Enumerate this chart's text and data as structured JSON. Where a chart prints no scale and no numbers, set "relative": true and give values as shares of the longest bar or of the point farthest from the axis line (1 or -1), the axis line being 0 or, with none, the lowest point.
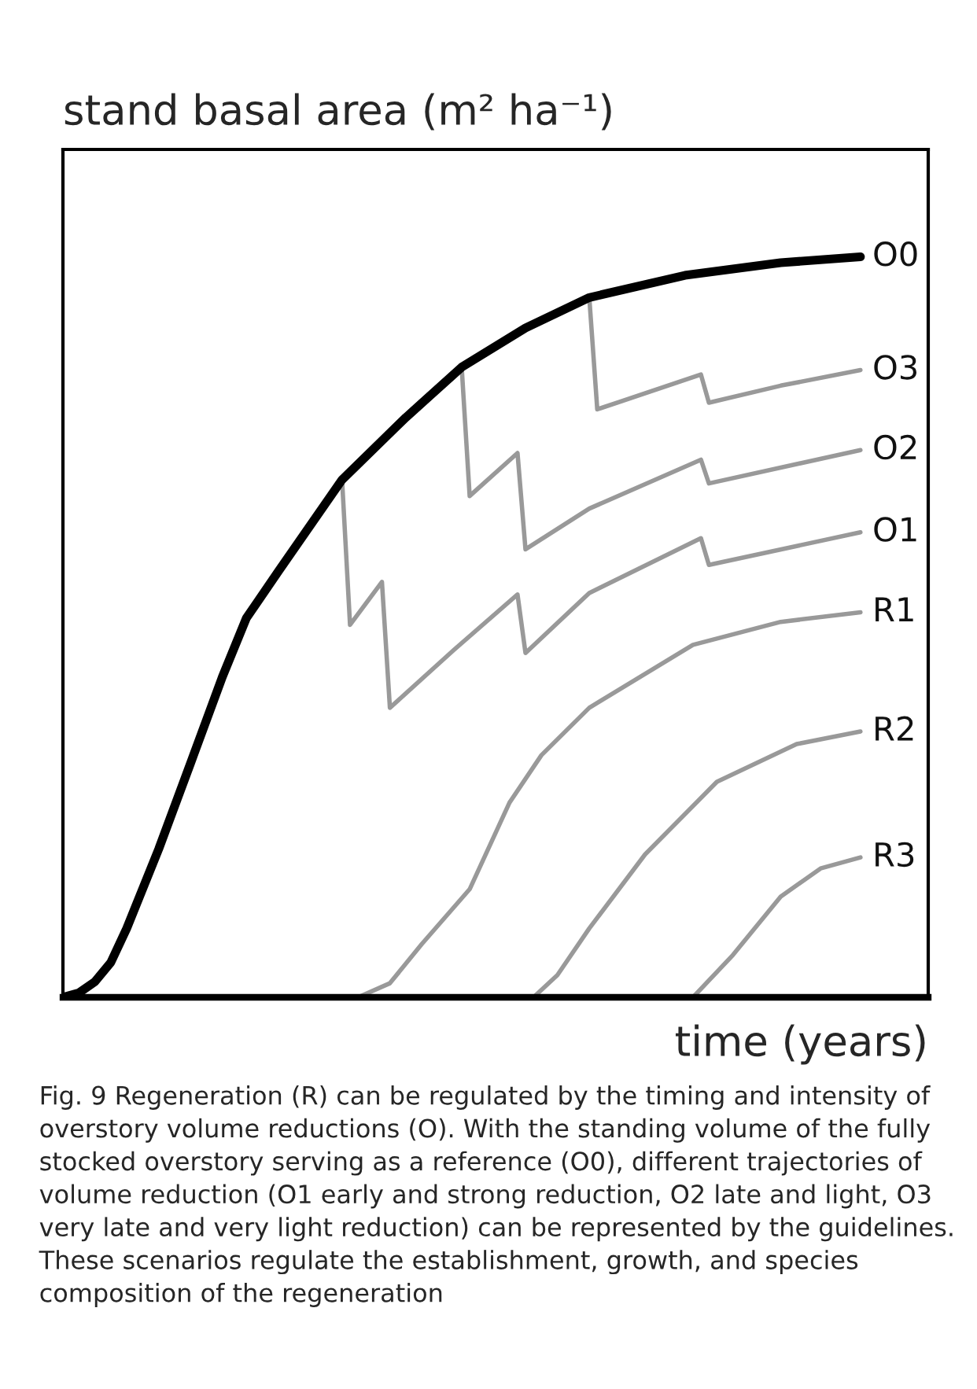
{
  "chart_data": {
    "type": "line",
    "title": "stand basal area (m² ha⁻¹)",
    "xlabel": "time (years)",
    "relative": true,
    "line_style": "solid",
    "annotations": [
      "Fig. 9 Regeneration (R) can be regulated by the timing and intensity of overstory volume reductions (O). With the standing volume of the fully stocked overstory serving as a reference (O0), different trajectories of volume reduction (O1 early and strong reduction, O2 late and light, O3 very late and very light reduction) can be represented by the guidelines. These scenarios regulate the establishment, growth, and species composition of the regeneration"
    ],
    "categories": [
      null,
      null,
      null,
      null,
      null,
      null,
      null,
      null,
      null,
      null,
      null,
      null,
      null,
      null,
      null,
      null,
      null,
      null,
      null,
      null,
      null,
      null,
      null,
      null,
      null,
      null,
      null,
      null,
      null,
      null,
      null,
      null,
      null,
      null,
      null,
      null,
      null,
      null,
      null,
      null,
      null,
      null,
      null,
      null,
      null,
      null,
      null,
      null,
      null,
      null,
      null,
      null,
      null,
      null,
      null,
      null,
      null,
      null,
      null,
      null,
      null,
      null,
      null,
      null,
      null,
      null,
      null,
      null,
      null,
      null,
      null,
      null,
      null,
      null,
      null,
      null,
      null,
      null,
      null,
      null,
      null,
      null,
      null,
      null,
      null,
      null,
      null,
      null,
      null,
      null,
      null,
      null,
      null,
      null,
      null,
      null,
      null,
      null,
      null,
      null,
      null
    ],
    "series": [
      {
        "name": "O0",
        "color": "#000000",
        "values": [
          0,
          null,
          0.006,
          null,
          0.021,
          null,
          0.047,
          null,
          0.093,
          null,
          null,
          null,
          0.2,
          null,
          null,
          null,
          0.316,
          null,
          null,
          null,
          0.433,
          null,
          null,
          0.512,
          null,
          null,
          null,
          0.575,
          null,
          null,
          null,
          null,
          null,
          null,
          null,
          0.699,
          null,
          null,
          null,
          null,
          null,
          null,
          null,
          0.783,
          null,
          null,
          null,
          null,
          null,
          null,
          0.851,
          null,
          null,
          null,
          null,
          null,
          null,
          null,
          0.904,
          null,
          null,
          null,
          null,
          null,
          null,
          null,
          0.945,
          null,
          null,
          null,
          null,
          null,
          null,
          null,
          null,
          null,
          null,
          null,
          0.975,
          null,
          null,
          null,
          null,
          null,
          null,
          null,
          null,
          null,
          null,
          null,
          0.992,
          null,
          null,
          null,
          null,
          null,
          null,
          null,
          null,
          null,
          1
        ]
      },
      {
        "name": "O3",
        "color": "#999999",
        "values": [
          null,
          null,
          null,
          null,
          null,
          null,
          null,
          null,
          null,
          null,
          null,
          null,
          null,
          null,
          null,
          null,
          null,
          null,
          null,
          null,
          null,
          null,
          null,
          null,
          null,
          null,
          null,
          null,
          null,
          null,
          null,
          null,
          null,
          null,
          null,
          null,
          null,
          null,
          null,
          null,
          null,
          null,
          null,
          null,
          null,
          null,
          null,
          null,
          null,
          null,
          null,
          null,
          null,
          null,
          null,
          null,
          null,
          null,
          null,
          null,
          null,
          null,
          null,
          null,
          null,
          null,
          0.945,
          0.794,
          null,
          null,
          null,
          null,
          null,
          null,
          null,
          null,
          null,
          null,
          null,
          null,
          0.841,
          0.803,
          null,
          null,
          null,
          null,
          null,
          null,
          null,
          null,
          0.826,
          null,
          null,
          null,
          null,
          null,
          null,
          null,
          null,
          null,
          0.847
        ]
      },
      {
        "name": "O2",
        "color": "#999999",
        "values": [
          null,
          null,
          null,
          null,
          null,
          null,
          null,
          null,
          null,
          null,
          null,
          null,
          null,
          null,
          null,
          null,
          null,
          null,
          null,
          null,
          null,
          null,
          null,
          null,
          null,
          null,
          null,
          null,
          null,
          null,
          null,
          null,
          null,
          null,
          null,
          null,
          null,
          null,
          null,
          null,
          null,
          null,
          null,
          null,
          null,
          null,
          null,
          null,
          null,
          null,
          0.851,
          0.677,
          null,
          null,
          null,
          null,
          null,
          0.735,
          0.605,
          null,
          null,
          null,
          null,
          null,
          null,
          null,
          0.66,
          null,
          null,
          null,
          null,
          null,
          null,
          null,
          null,
          null,
          null,
          null,
          null,
          null,
          0.726,
          0.694,
          null,
          null,
          null,
          null,
          null,
          null,
          null,
          null,
          null,
          null,
          null,
          null,
          null,
          null,
          null,
          null,
          null,
          null,
          0.739
        ]
      },
      {
        "name": "O1",
        "color": "#999999",
        "values": [
          null,
          null,
          null,
          null,
          null,
          null,
          null,
          null,
          null,
          null,
          null,
          null,
          null,
          null,
          null,
          null,
          null,
          null,
          null,
          null,
          null,
          null,
          null,
          null,
          null,
          null,
          null,
          null,
          null,
          null,
          null,
          null,
          null,
          null,
          null,
          0.699,
          0.503,
          null,
          null,
          null,
          0.561,
          0.391,
          null,
          null,
          null,
          null,
          null,
          null,
          null,
          0.469,
          null,
          null,
          null,
          null,
          null,
          null,
          null,
          0.544,
          0.465,
          null,
          null,
          null,
          null,
          null,
          null,
          null,
          0.546,
          null,
          null,
          null,
          null,
          null,
          null,
          null,
          null,
          null,
          null,
          null,
          null,
          null,
          0.62,
          0.584,
          null,
          null,
          null,
          null,
          null,
          null,
          null,
          null,
          null,
          null,
          null,
          null,
          null,
          null,
          null,
          null,
          null,
          null,
          0.628
        ]
      },
      {
        "name": "R1",
        "color": "#999999",
        "values": [
          null,
          null,
          null,
          null,
          null,
          null,
          null,
          null,
          null,
          null,
          null,
          null,
          null,
          null,
          null,
          null,
          null,
          null,
          null,
          null,
          null,
          null,
          null,
          null,
          null,
          null,
          null,
          null,
          null,
          null,
          null,
          null,
          null,
          null,
          null,
          null,
          null,
          0,
          null,
          null,
          null,
          0.019,
          null,
          null,
          null,
          0.072,
          null,
          null,
          null,
          null,
          null,
          0.146,
          null,
          null,
          null,
          null,
          0.263,
          null,
          null,
          null,
          0.327,
          null,
          null,
          null,
          null,
          null,
          0.391,
          null,
          null,
          null,
          null,
          null,
          null,
          null,
          null,
          null,
          null,
          null,
          null,
          0.476,
          null,
          null,
          null,
          null,
          null,
          null,
          null,
          null,
          null,
          null,
          0.507,
          null,
          null,
          null,
          null,
          null,
          null,
          null,
          null,
          null,
          0.52
        ]
      },
      {
        "name": "R2",
        "color": "#999999",
        "values": [
          null,
          null,
          null,
          null,
          null,
          null,
          null,
          null,
          null,
          null,
          null,
          null,
          null,
          null,
          null,
          null,
          null,
          null,
          null,
          null,
          null,
          null,
          null,
          null,
          null,
          null,
          null,
          null,
          null,
          null,
          null,
          null,
          null,
          null,
          null,
          null,
          null,
          null,
          null,
          null,
          null,
          null,
          null,
          null,
          null,
          null,
          null,
          null,
          null,
          null,
          null,
          null,
          null,
          null,
          null,
          null,
          null,
          null,
          null,
          0,
          null,
          null,
          0.03,
          null,
          null,
          null,
          0.093,
          null,
          null,
          null,
          null,
          null,
          null,
          0.193,
          null,
          null,
          null,
          null,
          null,
          null,
          null,
          null,
          0.291,
          null,
          null,
          null,
          null,
          null,
          null,
          null,
          null,
          null,
          0.342,
          null,
          null,
          null,
          null,
          null,
          null,
          null,
          0.359
        ]
      },
      {
        "name": "R3",
        "color": "#999999",
        "values": [
          null,
          null,
          null,
          null,
          null,
          null,
          null,
          null,
          null,
          null,
          null,
          null,
          null,
          null,
          null,
          null,
          null,
          null,
          null,
          null,
          null,
          null,
          null,
          null,
          null,
          null,
          null,
          null,
          null,
          null,
          null,
          null,
          null,
          null,
          null,
          null,
          null,
          null,
          null,
          null,
          null,
          null,
          null,
          null,
          null,
          null,
          null,
          null,
          null,
          null,
          null,
          null,
          null,
          null,
          null,
          null,
          null,
          null,
          null,
          null,
          null,
          null,
          null,
          null,
          null,
          null,
          null,
          null,
          null,
          null,
          null,
          null,
          null,
          null,
          null,
          null,
          null,
          null,
          null,
          0,
          null,
          null,
          null,
          null,
          0.057,
          null,
          null,
          null,
          null,
          null,
          0.136,
          null,
          null,
          null,
          null,
          0.174,
          null,
          null,
          null,
          null,
          0.189
        ]
      }
    ]
  }
}
